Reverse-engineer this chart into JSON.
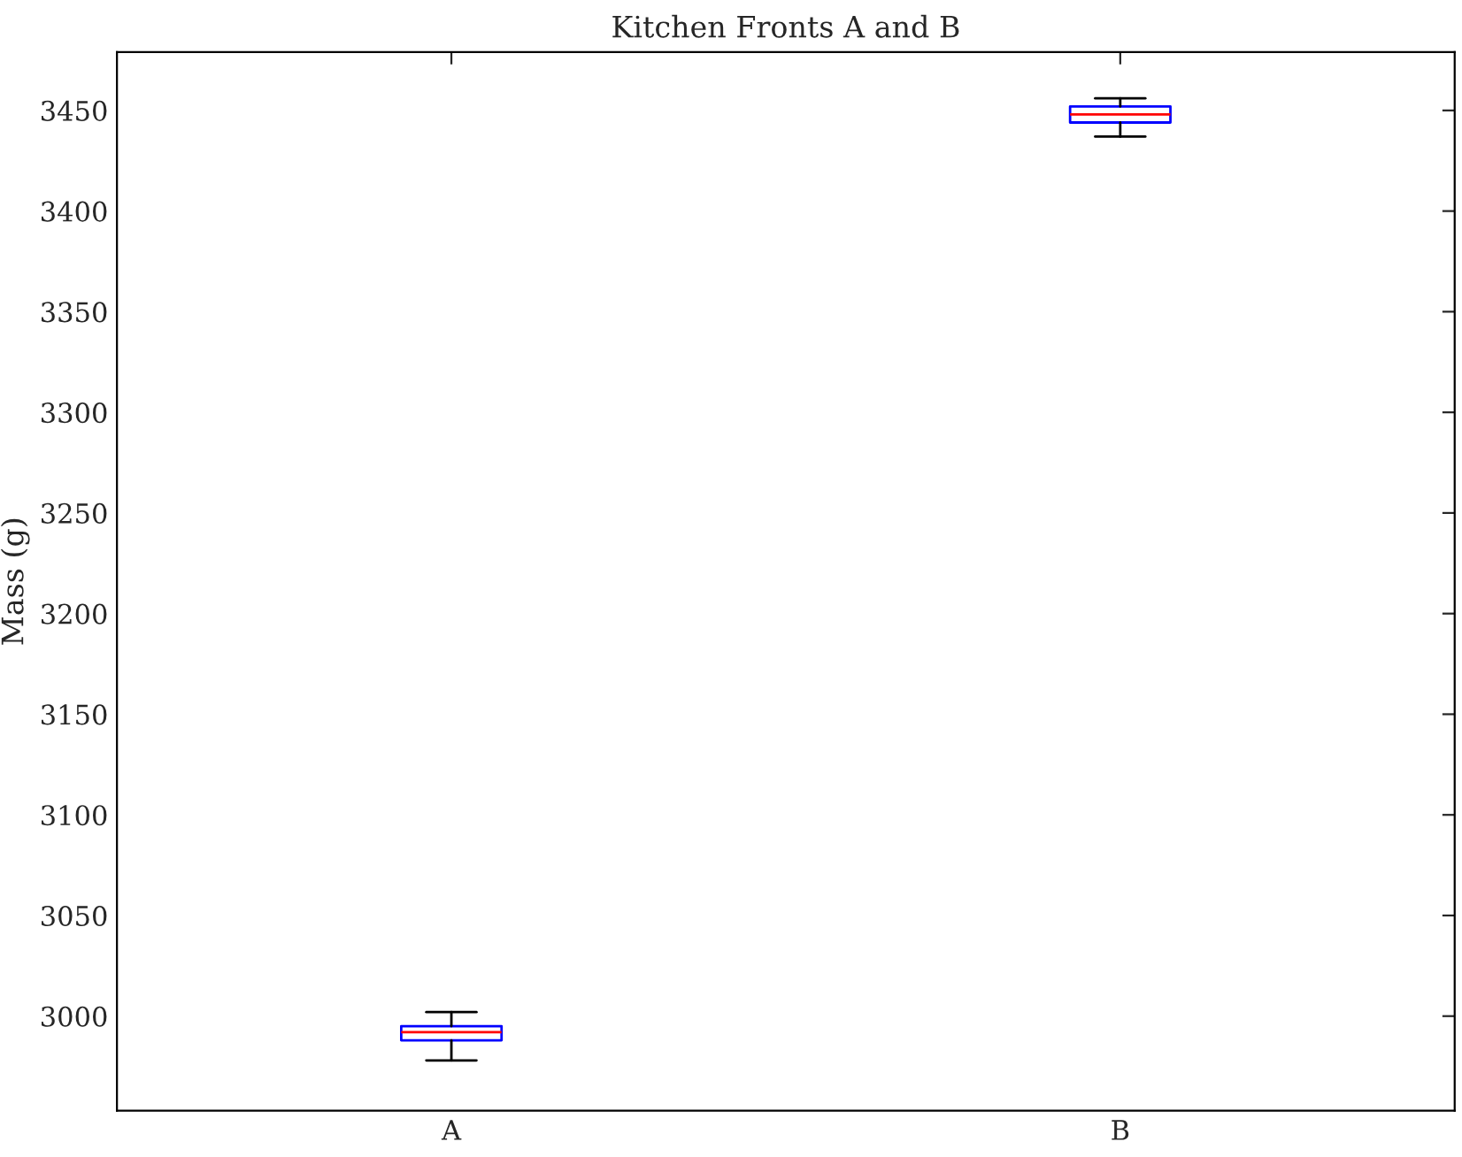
{
  "chart_data": {
    "type": "box",
    "title": "Kitchen Fronts A and B",
    "ylabel": "Mass (g)",
    "categories": [
      "A",
      "B"
    ],
    "boxes": [
      {
        "low": 2978,
        "q1": 2988,
        "median": 2992,
        "q3": 2995,
        "high": 3002
      },
      {
        "low": 3437,
        "q1": 3444,
        "median": 3448,
        "q3": 3452,
        "high": 3456
      }
    ],
    "color": "#0000ff",
    "ylim": [
      2953,
      3479
    ],
    "yticks": [
      3000,
      3050,
      3100,
      3150,
      3200,
      3250,
      3300,
      3350,
      3400,
      3450
    ],
    "grid": false
  }
}
